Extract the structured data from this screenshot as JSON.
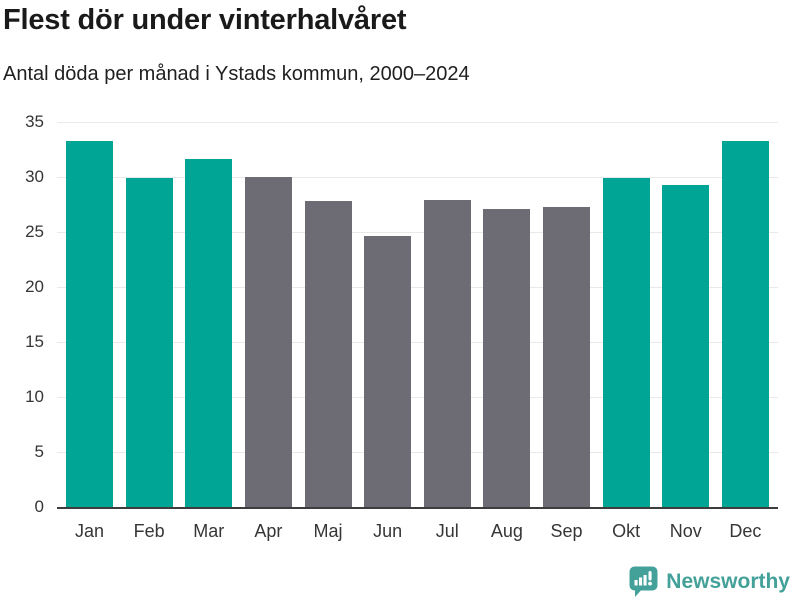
{
  "header": {
    "title": "Flest dör under vinterhalvåret",
    "subtitle": "Antal döda per månad i Ystads kommun, 2000–2024"
  },
  "chart_data": {
    "type": "bar",
    "title": "Flest dör under vinterhalvåret",
    "subtitle": "Antal döda per månad i Ystads kommun, 2000–2024",
    "categories": [
      "Jan",
      "Feb",
      "Mar",
      "Apr",
      "Maj",
      "Jun",
      "Jul",
      "Aug",
      "Sep",
      "Okt",
      "Nov",
      "Dec"
    ],
    "values": [
      33.3,
      29.9,
      31.6,
      30.0,
      27.8,
      24.6,
      27.9,
      27.1,
      27.3,
      29.9,
      29.3,
      33.3
    ],
    "bar_colors": [
      "#00a596",
      "#00a596",
      "#00a596",
      "#6d6c75",
      "#6d6c75",
      "#6d6c75",
      "#6d6c75",
      "#6d6c75",
      "#6d6c75",
      "#00a596",
      "#00a596",
      "#00a596"
    ],
    "highlight_color": "#00a596",
    "muted_color": "#6d6c75",
    "xlabel": "",
    "ylabel": "",
    "ylim": [
      0,
      35
    ],
    "yticks": [
      0,
      5,
      10,
      15,
      20,
      25,
      30,
      35
    ],
    "grid": "horizontal",
    "legend": "none"
  },
  "footer": {
    "brand": "Newsworthy",
    "brand_color": "#44a19a",
    "logo_icon": "newsworthy-speech-bubble-bar-chart"
  }
}
